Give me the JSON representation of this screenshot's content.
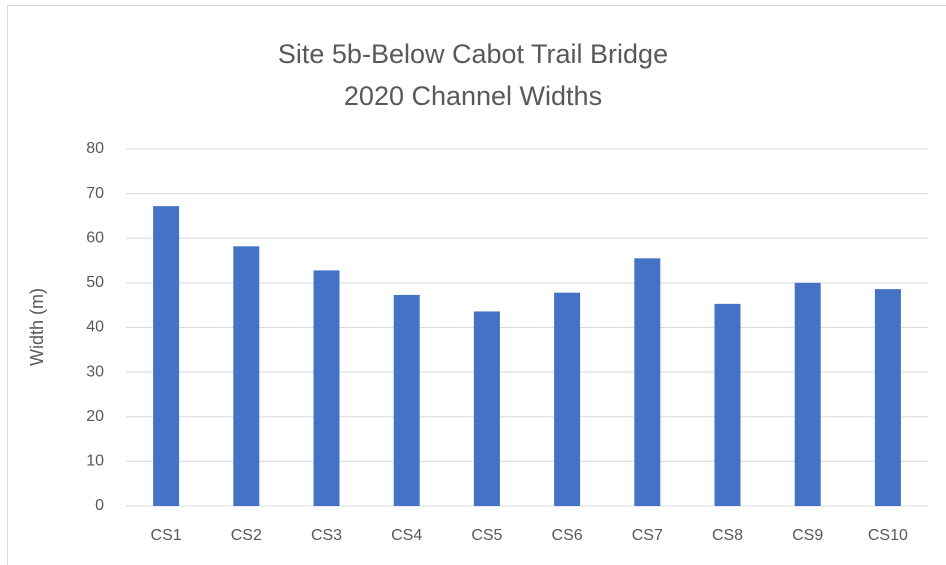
{
  "chart_data": {
    "type": "bar",
    "title": "Site 5b-Below Cabot Trail Bridge",
    "subtitle": "2020 Channel Widths",
    "y_label": "Width (m)",
    "categories": [
      "CS1",
      "CS2",
      "CS3",
      "CS4",
      "CS5",
      "CS6",
      "CS7",
      "CS8",
      "CS9",
      "CS10"
    ],
    "values": [
      67.2,
      58.2,
      52.8,
      47.3,
      43.6,
      47.8,
      55.5,
      45.3,
      50.0,
      48.6
    ],
    "color": "#4472c4",
    "ylim": [
      0,
      80
    ],
    "yticks": [
      0,
      10,
      20,
      30,
      40,
      50,
      60,
      70,
      80
    ],
    "grid": true
  }
}
